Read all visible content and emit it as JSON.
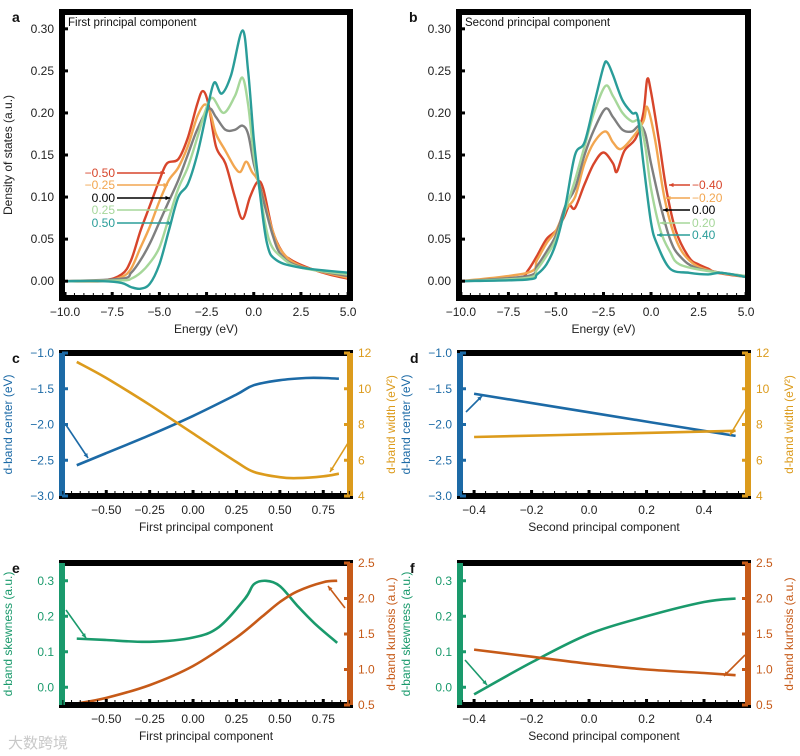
{
  "colors": {
    "pc_neg2": "#d7452b",
    "pc_neg1": "#f2a650",
    "pc_zero": "#7f7f7f",
    "pc_pos1": "#a6d79a",
    "pc_pos2": "#2a9d99",
    "center": "#1c6aa6",
    "width": "#dc9b1c",
    "skewness": "#1a9a6c",
    "kurtosis": "#c65a18",
    "frame": "#000000"
  },
  "watermark": "大数跨境",
  "chart_data": [
    {
      "id": "a",
      "type": "line",
      "panel_label": "a",
      "title": "First principal component",
      "xlabel": "Energy (eV)",
      "ylabel": "Density of states (a.u.)",
      "xlim": [
        -10,
        5
      ],
      "ylim": [
        -0.02,
        0.32
      ],
      "xticks": [
        "−10.0",
        "−7.5",
        "−5.0",
        "−2.5",
        "0.0",
        "2.5",
        "5.0"
      ],
      "xtick_values": [
        -10,
        -7.5,
        -5,
        -2.5,
        0,
        2.5,
        5
      ],
      "yticks": [
        "0.00",
        "0.05",
        "0.10",
        "0.15",
        "0.20",
        "0.25",
        "0.30"
      ],
      "ytick_values": [
        0,
        0.05,
        0.1,
        0.15,
        0.2,
        0.25,
        0.3
      ],
      "legend_placement": "annotated-arrows-left",
      "series": [
        {
          "name": "−0.50",
          "color_key": "pc_neg2",
          "x": [
            -10,
            -8,
            -7,
            -6.5,
            -6,
            -5.5,
            -5,
            -4.6,
            -4,
            -3.5,
            -3,
            -2.7,
            -2.4,
            -2,
            -1.5,
            -1,
            -0.6,
            -0.2,
            0.2,
            0.5,
            1,
            1.5,
            2,
            3,
            4,
            5
          ],
          "y": [
            0,
            0.001,
            0.008,
            0.025,
            0.06,
            0.09,
            0.12,
            0.14,
            0.145,
            0.17,
            0.21,
            0.226,
            0.21,
            0.16,
            0.14,
            0.1,
            0.074,
            0.1,
            0.118,
            0.11,
            0.06,
            0.035,
            0.025,
            0.015,
            0.008,
            0.003
          ]
        },
        {
          "name": "−0.25",
          "color_key": "pc_neg1",
          "x": [
            -10,
            -8,
            -7,
            -6.5,
            -6,
            -5.5,
            -5,
            -4.5,
            -4,
            -3.5,
            -3,
            -2.6,
            -2.3,
            -2,
            -1.5,
            -1,
            -0.7,
            -0.4,
            -0.1,
            0.3,
            1,
            1.5,
            2.5,
            5
          ],
          "y": [
            0,
            0,
            0.005,
            0.015,
            0.04,
            0.065,
            0.095,
            0.12,
            0.135,
            0.16,
            0.195,
            0.21,
            0.2,
            0.175,
            0.155,
            0.135,
            0.13,
            0.142,
            0.13,
            0.115,
            0.06,
            0.035,
            0.018,
            0.004
          ]
        },
        {
          "name": "0.00",
          "color_key": "pc_zero",
          "x": [
            -10,
            -7,
            -6.5,
            -6,
            -5.5,
            -5,
            -4.5,
            -4,
            -3.5,
            -3,
            -2.4,
            -2,
            -1.5,
            -1,
            -0.6,
            -0.3,
            0,
            0.3,
            1,
            1.5,
            2.5,
            5
          ],
          "y": [
            0,
            0.003,
            0.01,
            0.025,
            0.045,
            0.07,
            0.095,
            0.12,
            0.15,
            0.18,
            0.205,
            0.195,
            0.18,
            0.18,
            0.185,
            0.175,
            0.14,
            0.115,
            0.055,
            0.03,
            0.017,
            0.006
          ]
        },
        {
          "name": "0.25",
          "color_key": "pc_pos1",
          "x": [
            -10,
            -7,
            -6.5,
            -6,
            -5.5,
            -5,
            -4.5,
            -4,
            -3.5,
            -3,
            -2.6,
            -2.2,
            -1.6,
            -1,
            -0.6,
            -0.3,
            0,
            0.3,
            0.8,
            1.5,
            2.5,
            5
          ],
          "y": [
            0,
            0.001,
            0.003,
            0.01,
            0.022,
            0.04,
            0.075,
            0.11,
            0.135,
            0.17,
            0.2,
            0.218,
            0.2,
            0.22,
            0.242,
            0.21,
            0.15,
            0.11,
            0.05,
            0.028,
            0.016,
            0.008
          ]
        },
        {
          "name": "0.50",
          "color_key": "pc_pos2",
          "x": [
            -10,
            -8,
            -7,
            -6.5,
            -6,
            -5.5,
            -5,
            -4.5,
            -4,
            -3.5,
            -3,
            -2.5,
            -2.1,
            -1.7,
            -1.2,
            -0.6,
            -0.3,
            0,
            0.3,
            0.7,
            1.2,
            2.5,
            5
          ],
          "y": [
            0,
            0,
            -0.002,
            -0.007,
            -0.009,
            -0.003,
            0.02,
            0.06,
            0.1,
            0.115,
            0.15,
            0.2,
            0.236,
            0.223,
            0.245,
            0.298,
            0.25,
            0.17,
            0.11,
            0.045,
            0.025,
            0.016,
            0.01
          ]
        }
      ]
    },
    {
      "id": "b",
      "type": "line",
      "panel_label": "b",
      "title": "Second principal component",
      "xlabel": "Energy (eV)",
      "ylabel": "",
      "xlim": [
        -10,
        5
      ],
      "ylim": [
        -0.02,
        0.32
      ],
      "xticks": [
        "−10.0",
        "−7.5",
        "−5.0",
        "−2.5",
        "0.0",
        "2.5",
        "5.0"
      ],
      "xtick_values": [
        -10,
        -7.5,
        -5,
        -2.5,
        0,
        2.5,
        5
      ],
      "yticks": [
        "0.00",
        "0.05",
        "0.10",
        "0.15",
        "0.20",
        "0.25",
        "0.30"
      ],
      "ytick_values": [
        0,
        0.05,
        0.1,
        0.15,
        0.2,
        0.25,
        0.3
      ],
      "legend_placement": "annotated-arrows-right",
      "series": [
        {
          "name": "−0.40",
          "color_key": "pc_neg2",
          "x": [
            -10,
            -7,
            -6.5,
            -6,
            -5.5,
            -5,
            -4.6,
            -4.3,
            -4,
            -3.5,
            -3,
            -2.5,
            -2,
            -1.8,
            -1.4,
            -0.8,
            -0.4,
            -0.2,
            0,
            0.4,
            0.8,
            1.3,
            2,
            2.5,
            3,
            3.5,
            5
          ],
          "y": [
            0,
            0.004,
            0.012,
            0.03,
            0.05,
            0.06,
            0.075,
            0.09,
            0.087,
            0.115,
            0.14,
            0.153,
            0.14,
            0.13,
            0.155,
            0.17,
            0.2,
            0.24,
            0.225,
            0.17,
            0.11,
            0.06,
            0.028,
            0.02,
            0.015,
            0.01,
            0.005
          ]
        },
        {
          "name": "−0.20",
          "color_key": "pc_neg1",
          "x": [
            -10,
            -6.5,
            -6,
            -5.5,
            -5,
            -4.5,
            -4,
            -3.5,
            -3,
            -2.4,
            -2,
            -1.6,
            -1,
            -0.4,
            -0.2,
            0.2,
            0.7,
            1.3,
            2,
            3,
            5
          ],
          "y": [
            0,
            0.01,
            0.025,
            0.045,
            0.06,
            0.085,
            0.1,
            0.14,
            0.165,
            0.178,
            0.165,
            0.157,
            0.17,
            0.19,
            0.207,
            0.17,
            0.1,
            0.05,
            0.025,
            0.013,
            0.005
          ]
        },
        {
          "name": "0.00",
          "color_key": "pc_zero",
          "x": [
            -10,
            -6.5,
            -6,
            -5.5,
            -5,
            -4.5,
            -4,
            -3.5,
            -3,
            -2.4,
            -2,
            -1.5,
            -1,
            -0.6,
            -0.3,
            0,
            0.5,
            1,
            1.5,
            2.5,
            5
          ],
          "y": [
            0,
            0.006,
            0.018,
            0.035,
            0.055,
            0.09,
            0.11,
            0.15,
            0.18,
            0.205,
            0.195,
            0.18,
            0.178,
            0.185,
            0.175,
            0.14,
            0.09,
            0.05,
            0.03,
            0.015,
            0.006
          ]
        },
        {
          "name": "0.20",
          "color_key": "pc_pos1",
          "x": [
            -10,
            -6.5,
            -6,
            -5.5,
            -5,
            -4.5,
            -4,
            -3.5,
            -3,
            -2.4,
            -2,
            -1.5,
            -1,
            -0.6,
            -0.3,
            0,
            0.5,
            1,
            1.5,
            3,
            5
          ],
          "y": [
            0,
            0.004,
            0.014,
            0.03,
            0.05,
            0.085,
            0.12,
            0.16,
            0.2,
            0.232,
            0.22,
            0.2,
            0.19,
            0.19,
            0.16,
            0.11,
            0.06,
            0.035,
            0.02,
            0.012,
            0.006
          ]
        },
        {
          "name": "0.40",
          "color_key": "pc_pos2",
          "x": [
            -10,
            -6.5,
            -6,
            -5.5,
            -5,
            -4.5,
            -4,
            -3.5,
            -3,
            -2.5,
            -2.3,
            -2,
            -1.5,
            -1,
            -0.7,
            -0.4,
            0,
            0.3,
            1,
            2,
            3,
            3.7,
            5
          ],
          "y": [
            0,
            0.002,
            0.008,
            0.02,
            0.045,
            0.09,
            0.15,
            0.165,
            0.21,
            0.255,
            0.26,
            0.245,
            0.215,
            0.2,
            0.195,
            0.14,
            0.07,
            0.045,
            0.015,
            0.01,
            0.008,
            0.01,
            0.005
          ]
        }
      ]
    },
    {
      "id": "c",
      "type": "line",
      "panel_label": "c",
      "xlabel": "First principal component",
      "ylabel": "d-band center (eV)",
      "y2label": "d-band width (eV²)",
      "xlim": [
        -0.755,
        0.904
      ],
      "ylim": [
        -3.0,
        -1.0
      ],
      "y2lim": [
        4,
        12
      ],
      "xticks": [
        "−0.50",
        "−0.25",
        "0.00",
        "0.25",
        "0.50",
        "0.75"
      ],
      "xtick_values": [
        -0.5,
        -0.25,
        0,
        0.25,
        0.5,
        0.75
      ],
      "yticks": [
        "−3.0",
        "−2.5",
        "−2.0",
        "−1.5",
        "−1.0"
      ],
      "ytick_values": [
        -3,
        -2.5,
        -2,
        -1.5,
        -1
      ],
      "y2ticks": [
        "4",
        "6",
        "8",
        "10",
        "12"
      ],
      "y2tick_values": [
        4,
        6,
        8,
        10,
        12
      ],
      "series": [
        {
          "name": "d-band center",
          "axis": "left",
          "color_key": "center",
          "x": [
            -0.67,
            -0.5,
            -0.25,
            0,
            0.25,
            0.35,
            0.5,
            0.65,
            0.75,
            0.84
          ],
          "y": [
            -2.57,
            -2.4,
            -2.15,
            -1.88,
            -1.58,
            -1.45,
            -1.38,
            -1.35,
            -1.35,
            -1.36
          ]
        },
        {
          "name": "d-band width",
          "axis": "right",
          "color_key": "width",
          "x": [
            -0.67,
            -0.5,
            -0.25,
            0,
            0.25,
            0.35,
            0.5,
            0.6,
            0.75,
            0.84
          ],
          "y": [
            11.5,
            10.6,
            9.1,
            7.5,
            5.9,
            5.35,
            5.05,
            5.0,
            5.1,
            5.25
          ]
        }
      ]
    },
    {
      "id": "d",
      "type": "line",
      "panel_label": "d",
      "xlabel": "Second principal component",
      "ylabel": "d-band center (eV)",
      "y2label": "d-band width (eV²)",
      "xlim": [
        -0.449,
        0.553
      ],
      "ylim": [
        -3.0,
        -1.0
      ],
      "y2lim": [
        4,
        12
      ],
      "xticks": [
        "−0.4",
        "−0.2",
        "0.0",
        "0.2",
        "0.4"
      ],
      "xtick_values": [
        -0.4,
        -0.2,
        0,
        0.2,
        0.4
      ],
      "yticks": [
        "−3.0",
        "−2.5",
        "−2.0",
        "−1.5",
        "−1.0"
      ],
      "ytick_values": [
        -3,
        -2.5,
        -2,
        -1.5,
        -1
      ],
      "y2ticks": [
        "4",
        "6",
        "8",
        "10",
        "12"
      ],
      "y2tick_values": [
        4,
        6,
        8,
        10,
        12
      ],
      "series": [
        {
          "name": "d-band center",
          "axis": "left",
          "color_key": "center",
          "x": [
            -0.4,
            0.0,
            0.51
          ],
          "y": [
            -1.57,
            -1.83,
            -2.16
          ]
        },
        {
          "name": "d-band width",
          "axis": "right",
          "color_key": "width",
          "x": [
            -0.4,
            0.0,
            0.51
          ],
          "y": [
            7.3,
            7.45,
            7.65
          ]
        }
      ]
    },
    {
      "id": "e",
      "type": "line",
      "panel_label": "e",
      "xlabel": "First principal component",
      "ylabel": "d-band skewness (a.u.)",
      "y2label": "d-band kurtosis (a.u.)",
      "xlim": [
        -0.755,
        0.904
      ],
      "ylim": [
        -0.05,
        0.35
      ],
      "y2lim": [
        0.5,
        2.5
      ],
      "xticks": [
        "−0.50",
        "−0.25",
        "0.00",
        "0.25",
        "0.50",
        "0.75"
      ],
      "xtick_values": [
        -0.5,
        -0.25,
        0,
        0.25,
        0.5,
        0.75
      ],
      "yticks": [
        "0.0",
        "0.1",
        "0.2",
        "0.3"
      ],
      "ytick_values": [
        0,
        0.1,
        0.2,
        0.3
      ],
      "y2ticks": [
        "0.5",
        "1.0",
        "1.5",
        "2.0",
        "2.5"
      ],
      "y2tick_values": [
        0.5,
        1,
        1.5,
        2,
        2.5
      ],
      "series": [
        {
          "name": "d-band skewness",
          "axis": "left",
          "color_key": "skewness",
          "x": [
            -0.67,
            -0.5,
            -0.25,
            0,
            0.15,
            0.3,
            0.35,
            0.42,
            0.5,
            0.6,
            0.7,
            0.83
          ],
          "y": [
            0.137,
            0.133,
            0.128,
            0.14,
            0.17,
            0.25,
            0.29,
            0.3,
            0.285,
            0.23,
            0.18,
            0.125
          ]
        },
        {
          "name": "d-band kurtosis",
          "axis": "right",
          "color_key": "kurtosis",
          "x": [
            -0.67,
            -0.5,
            -0.25,
            0,
            0.25,
            0.4,
            0.5,
            0.6,
            0.75,
            0.83
          ],
          "y": [
            0.52,
            0.6,
            0.78,
            1.05,
            1.45,
            1.75,
            1.95,
            2.1,
            2.23,
            2.25
          ]
        }
      ]
    },
    {
      "id": "f",
      "type": "line",
      "panel_label": "f",
      "xlabel": "Second principal component",
      "ylabel": "d-band skewness (a.u.)",
      "y2label": "d-band kurtosis (a.u.)",
      "xlim": [
        -0.449,
        0.553
      ],
      "ylim": [
        -0.05,
        0.35
      ],
      "y2lim": [
        0.5,
        2.5
      ],
      "xticks": [
        "−0.4",
        "−0.2",
        "0.0",
        "0.2",
        "0.4"
      ],
      "xtick_values": [
        -0.4,
        -0.2,
        0,
        0.2,
        0.4
      ],
      "yticks": [
        "0.0",
        "0.1",
        "0.2",
        "0.3"
      ],
      "ytick_values": [
        0,
        0.1,
        0.2,
        0.3
      ],
      "y2ticks": [
        "0.5",
        "1.0",
        "1.5",
        "2.0",
        "2.5"
      ],
      "y2tick_values": [
        0.5,
        1,
        1.5,
        2,
        2.5
      ],
      "series": [
        {
          "name": "d-band skewness",
          "axis": "left",
          "color_key": "skewness",
          "x": [
            -0.4,
            -0.2,
            0,
            0.2,
            0.4,
            0.51
          ],
          "y": [
            -0.02,
            0.07,
            0.15,
            0.2,
            0.24,
            0.25
          ]
        },
        {
          "name": "d-band kurtosis",
          "axis": "right",
          "color_key": "kurtosis",
          "x": [
            -0.4,
            -0.2,
            0,
            0.2,
            0.4,
            0.51
          ],
          "y": [
            1.28,
            1.18,
            1.08,
            1.0,
            0.95,
            0.92
          ]
        }
      ]
    }
  ]
}
